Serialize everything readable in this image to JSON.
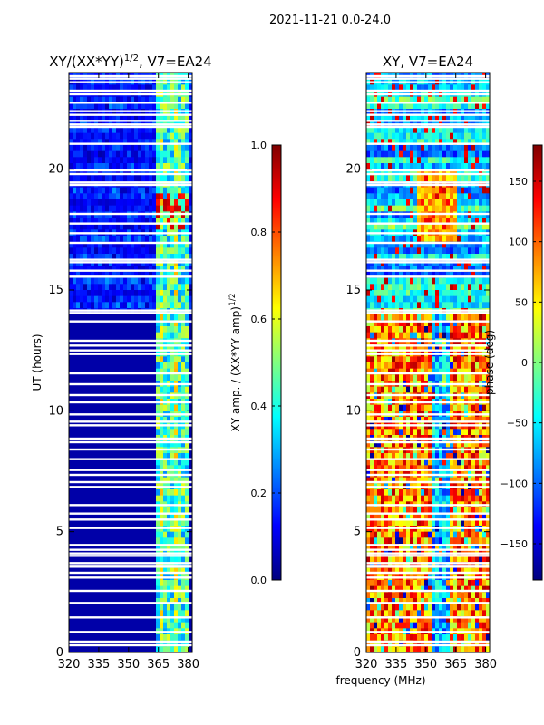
{
  "suptitle": "2021-11-21 0.0-24.0",
  "chart_data": [
    {
      "type": "heatmap",
      "title": "XY/(XX*YY)^1/2, V7=EA24",
      "title_main": "XY/(XX*YY)",
      "title_exp": "1/2",
      "title_rest": ", V7=EA24",
      "xlabel": "",
      "ylabel": "UT (hours)",
      "xlim": [
        320,
        382
      ],
      "ylim": [
        0,
        24
      ],
      "xticks": [
        "320",
        "335",
        "350",
        "365",
        "380"
      ],
      "yticks": [
        "0",
        "5",
        "10",
        "15",
        "20"
      ],
      "colorbar": {
        "label": "XY amp. / (XX*YY amp)^1/2",
        "label_main": "XY amp. / (XX*YY amp)",
        "label_exp": "1/2",
        "range": [
          0.0,
          1.0
        ],
        "ticks": [
          "0.0",
          "0.2",
          "0.4",
          "0.6",
          "0.8",
          "1.0"
        ]
      },
      "colormap": [
        "#00007f",
        "#0000ff",
        "#0080ff",
        "#00ffff",
        "#80ff80",
        "#ffff00",
        "#ff8000",
        "#ff0000",
        "#7f0000"
      ],
      "description_values": {
        "background_amp": 0.05,
        "band_low_amp": 0.2,
        "band_high_amp": 0.55,
        "band_range_mhz": [
          363,
          381
        ]
      }
    },
    {
      "type": "heatmap",
      "title": "XY, V7=EA24",
      "xlabel": "frequency (MHz)",
      "ylabel": "",
      "xlim": [
        320,
        382
      ],
      "ylim": [
        0,
        24
      ],
      "xticks": [
        "320",
        "335",
        "350",
        "365",
        "380"
      ],
      "yticks": [
        "0",
        "5",
        "10",
        "15",
        "20"
      ],
      "colorbar": {
        "label": "phase (deg)",
        "range": [
          -180,
          180
        ],
        "ticks": [
          "−150",
          "−100",
          "−50",
          "0",
          "50",
          "100",
          "150"
        ]
      },
      "colormap": [
        "#00007f",
        "#0000ff",
        "#0080ff",
        "#00ffff",
        "#80ff80",
        "#ffff00",
        "#ff8000",
        "#ff0000",
        "#7f0000"
      ]
    }
  ],
  "flagged_hours": [
    0.3,
    0.45,
    0.85,
    1.45,
    2.05,
    2.55,
    3.1,
    3.3,
    3.55,
    3.7,
    4.0,
    4.1,
    4.25,
    4.45,
    5.15,
    5.5,
    5.75,
    6.1,
    6.85,
    7.05,
    7.35,
    7.55,
    8.0,
    8.4,
    8.7,
    8.85,
    9.4,
    9.55,
    9.85,
    10.35,
    10.65,
    11.1,
    11.55,
    12.35,
    12.5,
    12.7,
    12.9,
    13.7,
    14.05,
    14.15,
    15.55,
    15.8,
    16.15,
    16.25,
    16.95,
    17.35,
    17.75,
    18.15,
    19.35,
    19.45,
    19.8,
    19.95,
    21.05,
    21.75,
    21.85,
    22.0,
    22.25,
    22.4,
    22.75,
    23.1,
    23.25,
    23.6,
    23.75,
    23.85
  ]
}
